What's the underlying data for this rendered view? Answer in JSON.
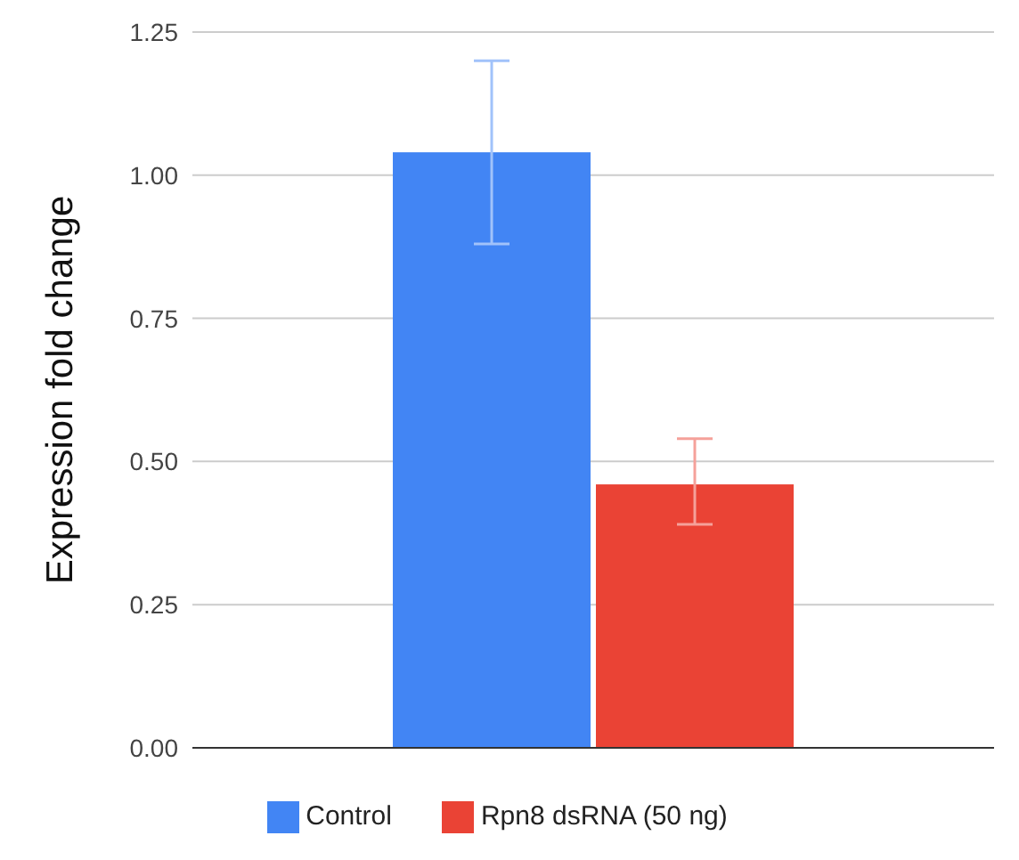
{
  "chart_data": {
    "type": "bar",
    "ylabel": "Expression fold change",
    "categories": [
      null
    ],
    "series": [
      {
        "name": "Control",
        "color": "#4285f4",
        "values": [
          1.04
        ],
        "errors": [
          [
            0.88,
            1.2
          ]
        ]
      },
      {
        "name": "Rpn8 dsRNA (50 ng)",
        "color": "#ea4335",
        "values": [
          0.46
        ],
        "errors": [
          [
            0.39,
            0.54
          ]
        ]
      }
    ],
    "ylim": [
      0,
      1.25
    ],
    "yticks": [
      {
        "value": 0,
        "label": "0.00"
      },
      0.25,
      {
        "value": 0.5,
        "label": "0.50"
      },
      0.75,
      {
        "value": 1,
        "label": "1.00"
      },
      1.25
    ],
    "grid": "y",
    "legend": "bottom"
  }
}
